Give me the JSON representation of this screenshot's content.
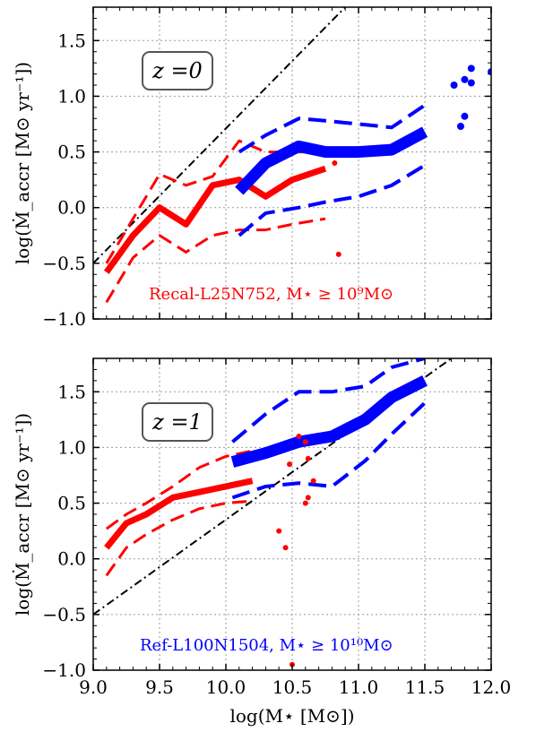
{
  "chart_data": [
    {
      "type": "line",
      "panel": "top",
      "badge": "z =0",
      "ylabel": "log(Ṁ_accr [M⊙ yr⁻¹])",
      "xlim": [
        9.0,
        12.0
      ],
      "ylim": [
        -1.0,
        1.8
      ],
      "xticks": [
        9.0,
        9.5,
        10.0,
        10.5,
        11.0,
        11.5,
        12.0
      ],
      "yticks": [
        -1.0,
        -0.5,
        0.0,
        0.5,
        1.0,
        1.5
      ],
      "ytick_labels": [
        "−1.0",
        "−0.5",
        "0.0",
        "0.5",
        "1.0",
        "1.5"
      ],
      "annotation": "Recal-L25N752, M⋆ ≥ 10⁹M⊙",
      "annotation_color": "#ff0000",
      "colors": {
        "red": "#ff0000",
        "blue": "#0000ff"
      },
      "identity_line": {
        "x": [
          9.0,
          10.9
        ],
        "y": [
          -0.5,
          1.8
        ]
      },
      "series": [
        {
          "color": "red",
          "style": "median",
          "x": [
            9.1,
            9.3,
            9.5,
            9.7,
            9.9,
            10.1,
            10.3,
            10.5,
            10.75
          ],
          "y": [
            -0.58,
            -0.25,
            0.0,
            -0.15,
            0.2,
            0.25,
            0.1,
            0.25,
            0.35
          ]
        },
        {
          "color": "red",
          "style": "percentile",
          "x": [
            9.1,
            9.3,
            9.5,
            9.7,
            9.9,
            10.1,
            10.3,
            10.5,
            10.75
          ],
          "y": [
            -0.5,
            -0.1,
            0.3,
            0.2,
            0.28,
            0.6,
            0.5,
            0.5,
            0.5
          ]
        },
        {
          "color": "red",
          "style": "percentile",
          "x": [
            9.1,
            9.3,
            9.5,
            9.7,
            9.9,
            10.1,
            10.3,
            10.5,
            10.75
          ],
          "y": [
            -0.85,
            -0.45,
            -0.25,
            -0.4,
            -0.25,
            -0.2,
            -0.2,
            -0.15,
            -0.1
          ]
        },
        {
          "color": "blue",
          "style": "median",
          "x": [
            10.1,
            10.3,
            10.55,
            10.75,
            11.0,
            11.25,
            11.5
          ],
          "y": [
            0.15,
            0.4,
            0.55,
            0.5,
            0.5,
            0.52,
            0.68
          ]
        },
        {
          "color": "blue",
          "style": "percentile",
          "x": [
            10.1,
            10.3,
            10.55,
            10.75,
            11.0,
            11.25,
            11.5
          ],
          "y": [
            0.5,
            0.65,
            0.8,
            0.78,
            0.75,
            0.72,
            0.92
          ]
        },
        {
          "color": "blue",
          "style": "percentile",
          "x": [
            10.1,
            10.3,
            10.55,
            10.75,
            11.0,
            11.25,
            11.5
          ],
          "y": [
            -0.25,
            -0.05,
            0.0,
            0.05,
            0.1,
            0.2,
            0.38
          ]
        }
      ],
      "points": [
        {
          "color": "red",
          "x": 10.7,
          "y": 0.33
        },
        {
          "color": "red",
          "x": 10.82,
          "y": 0.4
        },
        {
          "color": "red",
          "x": 10.85,
          "y": -0.42
        },
        {
          "color": "blue",
          "x": 11.72,
          "y": 1.1
        },
        {
          "color": "blue",
          "x": 11.8,
          "y": 1.15
        },
        {
          "color": "blue",
          "x": 11.85,
          "y": 1.25
        },
        {
          "color": "blue",
          "x": 11.85,
          "y": 1.12
        },
        {
          "color": "blue",
          "x": 11.77,
          "y": 0.73
        },
        {
          "color": "blue",
          "x": 11.8,
          "y": 0.82
        },
        {
          "color": "blue",
          "x": 12.0,
          "y": 1.22
        }
      ]
    },
    {
      "type": "line",
      "panel": "bottom",
      "badge": "z =1",
      "xlabel": "log(M⋆ [M⊙])",
      "ylabel": "log(Ṁ_accr [M⊙ yr⁻¹])",
      "xlim": [
        9.0,
        12.0
      ],
      "ylim": [
        -1.0,
        1.8
      ],
      "xticks": [
        9.0,
        9.5,
        10.0,
        10.5,
        11.0,
        11.5,
        12.0
      ],
      "xtick_labels": [
        "9.0",
        "9.5",
        "10.0",
        "10.5",
        "11.0",
        "11.5",
        "12.0"
      ],
      "yticks": [
        -1.0,
        -0.5,
        0.0,
        0.5,
        1.0,
        1.5
      ],
      "ytick_labels": [
        "−1.0",
        "−0.5",
        "0.0",
        "0.5",
        "1.0",
        "1.5"
      ],
      "annotation": "Ref-L100N1504, M⋆ ≥ 10¹⁰M⊙",
      "annotation_color": "#0000ff",
      "colors": {
        "red": "#ff0000",
        "blue": "#0000ff"
      },
      "identity_line": {
        "x": [
          9.0,
          11.7
        ],
        "y": [
          -0.5,
          1.8
        ]
      },
      "series": [
        {
          "color": "red",
          "style": "median",
          "x": [
            9.1,
            9.25,
            9.4,
            9.6,
            9.8,
            10.0,
            10.2
          ],
          "y": [
            0.1,
            0.32,
            0.4,
            0.55,
            0.6,
            0.65,
            0.7
          ]
        },
        {
          "color": "red",
          "style": "percentile",
          "x": [
            9.1,
            9.25,
            9.4,
            9.6,
            9.8,
            10.0,
            10.2
          ],
          "y": [
            0.27,
            0.4,
            0.5,
            0.65,
            0.82,
            0.92,
            0.97
          ]
        },
        {
          "color": "red",
          "style": "percentile",
          "x": [
            9.1,
            9.25,
            9.4,
            9.6,
            9.8,
            10.0,
            10.2
          ],
          "y": [
            -0.15,
            0.1,
            0.22,
            0.35,
            0.45,
            0.5,
            0.52
          ]
        },
        {
          "color": "blue",
          "style": "median",
          "x": [
            10.05,
            10.3,
            10.55,
            10.8,
            11.05,
            11.25,
            11.5
          ],
          "y": [
            0.87,
            0.95,
            1.05,
            1.1,
            1.25,
            1.45,
            1.6
          ]
        },
        {
          "color": "blue",
          "style": "percentile",
          "x": [
            10.05,
            10.3,
            10.55,
            10.8,
            11.05,
            11.25,
            11.5
          ],
          "y": [
            1.05,
            1.3,
            1.5,
            1.5,
            1.55,
            1.72,
            1.8
          ]
        },
        {
          "color": "blue",
          "style": "percentile",
          "x": [
            10.05,
            10.3,
            10.55,
            10.8,
            11.05,
            11.25,
            11.5
          ],
          "y": [
            0.55,
            0.65,
            0.68,
            0.65,
            0.88,
            1.12,
            1.4
          ]
        }
      ],
      "points": [
        {
          "color": "red",
          "x": 10.4,
          "y": 0.25
        },
        {
          "color": "red",
          "x": 10.45,
          "y": 0.1
        },
        {
          "color": "red",
          "x": 10.48,
          "y": 0.85
        },
        {
          "color": "red",
          "x": 10.55,
          "y": 1.1
        },
        {
          "color": "red",
          "x": 10.6,
          "y": 1.05
        },
        {
          "color": "red",
          "x": 10.62,
          "y": 0.9
        },
        {
          "color": "red",
          "x": 10.6,
          "y": 0.5
        },
        {
          "color": "red",
          "x": 10.62,
          "y": 0.55
        },
        {
          "color": "red",
          "x": 10.66,
          "y": 0.7
        },
        {
          "color": "red",
          "x": 10.5,
          "y": -0.95
        }
      ]
    }
  ]
}
